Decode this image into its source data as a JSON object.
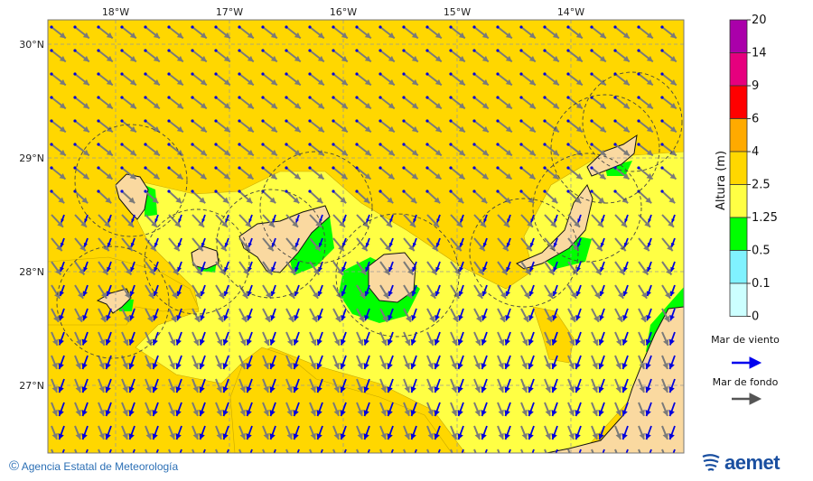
{
  "map": {
    "lon_labels": [
      "18°W",
      "17°W",
      "16°W",
      "15°W",
      "14°W"
    ],
    "lat_labels": [
      "30°N",
      "29°N",
      "28°N",
      "27°N"
    ],
    "colors": {
      "level_2_5_4": "#FFD700",
      "level_1_25_2_5": "#FFFF44",
      "level_0_5_1_25": "#00FF00",
      "land": "#FAD9A0",
      "wind_sea_arrow": "#0000DD",
      "swell_arrow": "#777777"
    }
  },
  "legend": {
    "title": "Altura (m)",
    "levels": [
      {
        "label": "20",
        "color": "#AA00AA"
      },
      {
        "label": "14",
        "color": "#E6007E"
      },
      {
        "label": "9",
        "color": "#FF0000"
      },
      {
        "label": "6",
        "color": "#FFAA00"
      },
      {
        "label": "4",
        "color": "#FFD700"
      },
      {
        "label": "2.5",
        "color": "#FFFF44"
      },
      {
        "label": "1.25",
        "color": "#00FF00"
      },
      {
        "label": "0.5",
        "color": "#80F2FF"
      },
      {
        "label": "0.1",
        "color": "#CCFFFF"
      },
      {
        "label": "0",
        "color": null
      }
    ],
    "wind_sea_label": "Mar de viento",
    "swell_label": "Mar de fondo"
  },
  "footer": {
    "copyright_symbol": "©",
    "agency": "Agencia Estatal de Meteorología",
    "logo_text": "aemet"
  }
}
